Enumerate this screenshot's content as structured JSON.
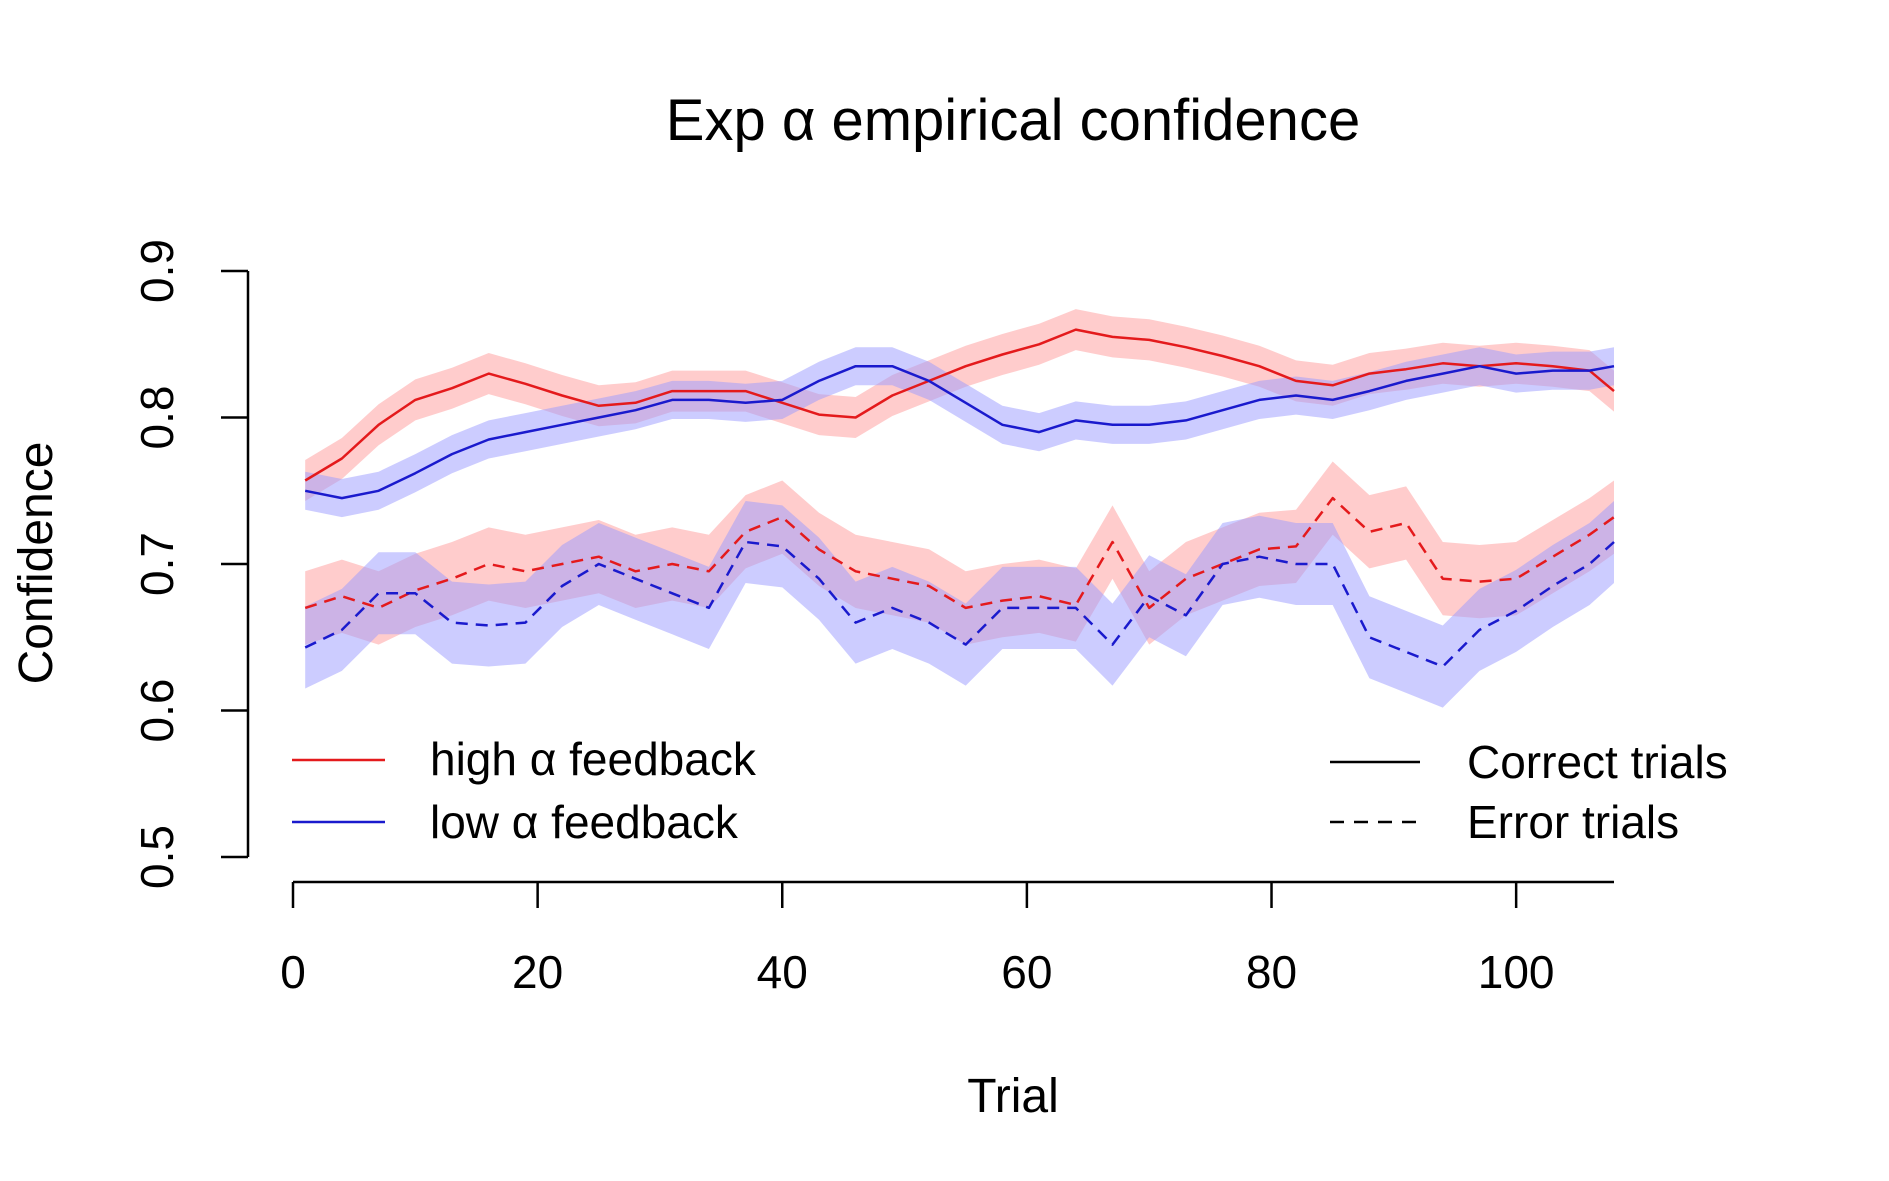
{
  "chart_data": {
    "type": "line",
    "title": "Exp α empirical confidence",
    "xlabel": "Trial",
    "ylabel": "Confidence",
    "xlim": [
      0,
      108
    ],
    "ylim": [
      0.5,
      0.9
    ],
    "xticks": [
      0,
      20,
      40,
      60,
      80,
      100
    ],
    "xtick_labels": [
      "0",
      "20",
      "40",
      "60",
      "80",
      "100"
    ],
    "yticks": [
      0.5,
      0.6,
      0.7,
      0.8,
      0.9
    ],
    "ytick_labels": [
      "0.5",
      "0.6",
      "0.7",
      "0.8",
      "0.9"
    ],
    "grid": false,
    "legend_feedback": {
      "placement": "bottom-left",
      "entries": [
        {
          "label": "high α feedback",
          "color": "#e41a1c",
          "dash": "solid"
        },
        {
          "label": "low α feedback",
          "color": "#1a1acd",
          "dash": "solid"
        }
      ]
    },
    "legend_trials": {
      "placement": "bottom-right",
      "entries": [
        {
          "label": "Correct trials",
          "color": "#000000",
          "dash": "solid"
        },
        {
          "label": "Error trials",
          "color": "#000000",
          "dash": "dashed"
        }
      ]
    },
    "x": [
      1,
      4,
      7,
      10,
      13,
      16,
      19,
      22,
      25,
      28,
      31,
      34,
      37,
      40,
      43,
      46,
      49,
      52,
      55,
      58,
      61,
      64,
      67,
      70,
      73,
      76,
      79,
      82,
      85,
      88,
      91,
      94,
      97,
      100,
      103,
      106,
      108
    ],
    "series": [
      {
        "group": "high",
        "trials": "correct",
        "color": "#e41a1c",
        "band_color": "#ff9a9a",
        "dash": "solid",
        "band_halfwidth": 0.014,
        "values": [
          0.757,
          0.772,
          0.795,
          0.812,
          0.82,
          0.83,
          0.823,
          0.815,
          0.808,
          0.81,
          0.818,
          0.818,
          0.818,
          0.81,
          0.802,
          0.8,
          0.815,
          0.825,
          0.835,
          0.843,
          0.85,
          0.86,
          0.855,
          0.853,
          0.848,
          0.842,
          0.835,
          0.825,
          0.822,
          0.83,
          0.833,
          0.837,
          0.835,
          0.837,
          0.835,
          0.832,
          0.818
        ]
      },
      {
        "group": "low",
        "trials": "correct",
        "color": "#1a1acd",
        "band_color": "#9a9aff",
        "dash": "solid",
        "band_halfwidth": 0.013,
        "values": [
          0.75,
          0.745,
          0.75,
          0.762,
          0.775,
          0.785,
          0.79,
          0.795,
          0.8,
          0.805,
          0.812,
          0.812,
          0.81,
          0.812,
          0.825,
          0.835,
          0.835,
          0.825,
          0.81,
          0.795,
          0.79,
          0.798,
          0.795,
          0.795,
          0.798,
          0.805,
          0.812,
          0.815,
          0.812,
          0.818,
          0.825,
          0.83,
          0.835,
          0.83,
          0.832,
          0.832,
          0.835
        ]
      },
      {
        "group": "high",
        "trials": "error",
        "color": "#e41a1c",
        "band_color": "#ff9a9a",
        "dash": "dashed",
        "band_halfwidth": 0.025,
        "values": [
          0.67,
          0.678,
          0.67,
          0.682,
          0.69,
          0.7,
          0.695,
          0.7,
          0.705,
          0.695,
          0.7,
          0.695,
          0.722,
          0.732,
          0.71,
          0.695,
          0.69,
          0.685,
          0.67,
          0.675,
          0.678,
          0.672,
          0.715,
          0.67,
          0.69,
          0.7,
          0.71,
          0.712,
          0.745,
          0.722,
          0.728,
          0.69,
          0.688,
          0.69,
          0.705,
          0.72,
          0.732
        ]
      },
      {
        "group": "low",
        "trials": "error",
        "color": "#1a1acd",
        "band_color": "#9a9aff",
        "dash": "dashed",
        "band_halfwidth": 0.028,
        "values": [
          0.643,
          0.655,
          0.68,
          0.68,
          0.66,
          0.658,
          0.66,
          0.685,
          0.7,
          0.69,
          0.68,
          0.67,
          0.715,
          0.712,
          0.69,
          0.66,
          0.67,
          0.66,
          0.645,
          0.67,
          0.67,
          0.67,
          0.645,
          0.678,
          0.665,
          0.7,
          0.705,
          0.7,
          0.7,
          0.65,
          0.64,
          0.63,
          0.655,
          0.668,
          0.685,
          0.7,
          0.715
        ]
      }
    ]
  }
}
